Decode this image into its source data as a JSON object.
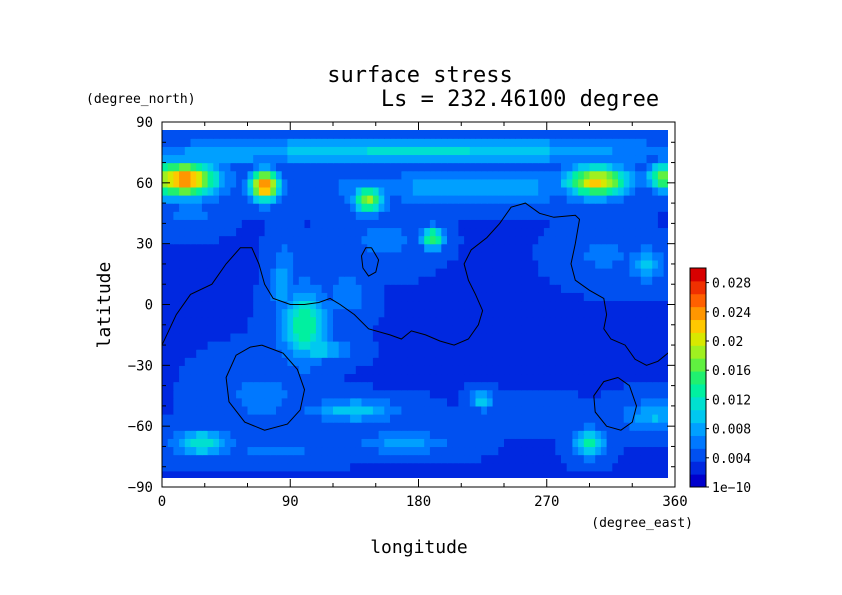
{
  "chart_data": {
    "type": "heatmap",
    "title": "surface stress",
    "subtitle": "Ls = 232.46100 degree",
    "xlabel": "longitude",
    "ylabel": "latitude",
    "x_units": "(degree_east)",
    "y_units": "(degree_north)",
    "xlim": [
      0,
      360
    ],
    "ylim": [
      -90,
      90
    ],
    "x_ticks": [
      0,
      90,
      180,
      270,
      360
    ],
    "y_ticks": [
      90,
      60,
      30,
      0,
      -30,
      -60,
      -90
    ],
    "x_tick_labels": [
      "0",
      "90",
      "180",
      "270",
      "360"
    ],
    "y_tick_labels": [
      "90",
      "60",
      "30",
      "0",
      "−30",
      "−60",
      "−90"
    ],
    "colorbar": {
      "min": 0,
      "max": 0.03,
      "tick_values": [
        0,
        0.004,
        0.008,
        0.012,
        0.016,
        0.02,
        0.024,
        0.028
      ],
      "tick_labels": [
        "1e−10",
        "0.004",
        "0.008",
        "0.012",
        "0.016",
        "0.02",
        "0.024",
        "0.028"
      ],
      "colors": [
        "#0000cc",
        "#0028e0",
        "#0050f0",
        "#0078ff",
        "#00a0ff",
        "#00c8f0",
        "#00e0d0",
        "#00f0a0",
        "#20f070",
        "#60f040",
        "#a0f020",
        "#d8e800",
        "#ffc800",
        "#ff9600",
        "#ff6000",
        "#f03000",
        "#d80000"
      ]
    },
    "background_value": 0.0035,
    "features": [
      {
        "lon": 15,
        "lat": 62,
        "rx": 22,
        "ry": 8,
        "value": 0.025
      },
      {
        "lon": 72,
        "lat": 59,
        "rx": 9,
        "ry": 7,
        "value": 0.026
      },
      {
        "lon": 145,
        "lat": 52,
        "rx": 10,
        "ry": 6,
        "value": 0.018
      },
      {
        "lon": 190,
        "lat": 33,
        "rx": 7,
        "ry": 5,
        "value": 0.016
      },
      {
        "lon": 305,
        "lat": 61,
        "rx": 20,
        "ry": 7,
        "value": 0.022
      },
      {
        "lon": 352,
        "lat": 63,
        "rx": 10,
        "ry": 6,
        "value": 0.018
      },
      {
        "lon": 180,
        "lat": 76,
        "rx": 150,
        "ry": 6,
        "value": 0.011
      },
      {
        "lon": 220,
        "lat": 58,
        "rx": 100,
        "ry": 7,
        "value": 0.008
      },
      {
        "lon": 40,
        "lat": 74,
        "rx": 40,
        "ry": 5,
        "value": 0.009
      },
      {
        "lon": 20,
        "lat": 45,
        "rx": 18,
        "ry": 7,
        "value": 0.006
      },
      {
        "lon": 155,
        "lat": 32,
        "rx": 25,
        "ry": 10,
        "value": 0.006
      },
      {
        "lon": 310,
        "lat": 25,
        "rx": 22,
        "ry": 10,
        "value": 0.006
      },
      {
        "lon": 340,
        "lat": 20,
        "rx": 12,
        "ry": 8,
        "value": 0.009
      },
      {
        "lon": 100,
        "lat": -10,
        "rx": 15,
        "ry": 16,
        "value": 0.014
      },
      {
        "lon": 85,
        "lat": 10,
        "rx": 8,
        "ry": 18,
        "value": 0.008
      },
      {
        "lon": 130,
        "lat": 5,
        "rx": 12,
        "ry": 10,
        "value": 0.007
      },
      {
        "lon": 110,
        "lat": -22,
        "rx": 18,
        "ry": 5,
        "value": 0.01
      },
      {
        "lon": 70,
        "lat": -45,
        "rx": 28,
        "ry": 14,
        "value": 0.006
      },
      {
        "lon": 135,
        "lat": -52,
        "rx": 28,
        "ry": 5,
        "value": 0.01
      },
      {
        "lon": 225,
        "lat": -47,
        "rx": 7,
        "ry": 4,
        "value": 0.011
      },
      {
        "lon": 300,
        "lat": -68,
        "rx": 10,
        "ry": 6,
        "value": 0.013
      },
      {
        "lon": 28,
        "lat": -68,
        "rx": 18,
        "ry": 6,
        "value": 0.012
      },
      {
        "lon": 345,
        "lat": -55,
        "rx": 20,
        "ry": 7,
        "value": 0.009
      },
      {
        "lon": 260,
        "lat": -55,
        "rx": 30,
        "ry": 6,
        "value": 0.005
      },
      {
        "lon": 170,
        "lat": -68,
        "rx": 30,
        "ry": 5,
        "value": 0.008
      },
      {
        "lon": 80,
        "lat": -72,
        "rx": 35,
        "ry": 5,
        "value": 0.006
      },
      {
        "lon": 250,
        "lat": -20,
        "rx": 40,
        "ry": 20,
        "value": 0.0025
      },
      {
        "lon": 240,
        "lat": 10,
        "rx": 30,
        "ry": 18,
        "value": 0.0025
      }
    ],
    "contours": [
      {
        "name": "coastline",
        "points": [
          [
            0,
            -20
          ],
          [
            10,
            -5
          ],
          [
            20,
            5
          ],
          [
            35,
            10
          ],
          [
            45,
            20
          ],
          [
            55,
            28
          ],
          [
            63,
            28
          ],
          [
            68,
            20
          ],
          [
            72,
            10
          ],
          [
            78,
            3
          ],
          [
            90,
            0
          ],
          [
            100,
            0
          ],
          [
            110,
            1
          ],
          [
            118,
            3
          ],
          [
            125,
            0
          ],
          [
            135,
            -5
          ],
          [
            145,
            -12
          ],
          [
            160,
            -15
          ],
          [
            168,
            -17
          ],
          [
            175,
            -13
          ],
          [
            185,
            -15
          ],
          [
            195,
            -18
          ],
          [
            205,
            -20
          ],
          [
            215,
            -17
          ],
          [
            222,
            -10
          ],
          [
            225,
            -3
          ],
          [
            220,
            5
          ],
          [
            215,
            12
          ],
          [
            212,
            20
          ],
          [
            217,
            27
          ],
          [
            228,
            33
          ],
          [
            237,
            40
          ],
          [
            245,
            48
          ],
          [
            255,
            50
          ],
          [
            265,
            45
          ],
          [
            275,
            43
          ],
          [
            290,
            44
          ],
          [
            293,
            42
          ],
          [
            290,
            30
          ],
          [
            287,
            20
          ],
          [
            290,
            12
          ],
          [
            300,
            7
          ],
          [
            310,
            3
          ],
          [
            312,
            -5
          ],
          [
            310,
            -12
          ],
          [
            315,
            -17
          ],
          [
            325,
            -20
          ],
          [
            332,
            -27
          ],
          [
            340,
            -30
          ],
          [
            348,
            -28
          ],
          [
            355,
            -24
          ],
          [
            360,
            -20
          ]
        ]
      },
      {
        "name": "basin-south-west",
        "points": [
          [
            70,
            -20
          ],
          [
            85,
            -24
          ],
          [
            95,
            -32
          ],
          [
            100,
            -42
          ],
          [
            97,
            -52
          ],
          [
            88,
            -59
          ],
          [
            72,
            -62
          ],
          [
            58,
            -58
          ],
          [
            47,
            -48
          ],
          [
            45,
            -36
          ],
          [
            52,
            -25
          ],
          [
            62,
            -21
          ],
          [
            70,
            -20
          ]
        ]
      },
      {
        "name": "ring-north",
        "points": [
          [
            147,
            28
          ],
          [
            152,
            22
          ],
          [
            150,
            16
          ],
          [
            145,
            14
          ],
          [
            141,
            18
          ],
          [
            140,
            24
          ],
          [
            143,
            28
          ],
          [
            147,
            28
          ]
        ]
      },
      {
        "name": "basin-south-east",
        "points": [
          [
            320,
            -36
          ],
          [
            328,
            -40
          ],
          [
            333,
            -50
          ],
          [
            330,
            -58
          ],
          [
            322,
            -62
          ],
          [
            312,
            -60
          ],
          [
            304,
            -53
          ],
          [
            303,
            -45
          ],
          [
            310,
            -38
          ],
          [
            320,
            -36
          ]
        ]
      }
    ]
  }
}
